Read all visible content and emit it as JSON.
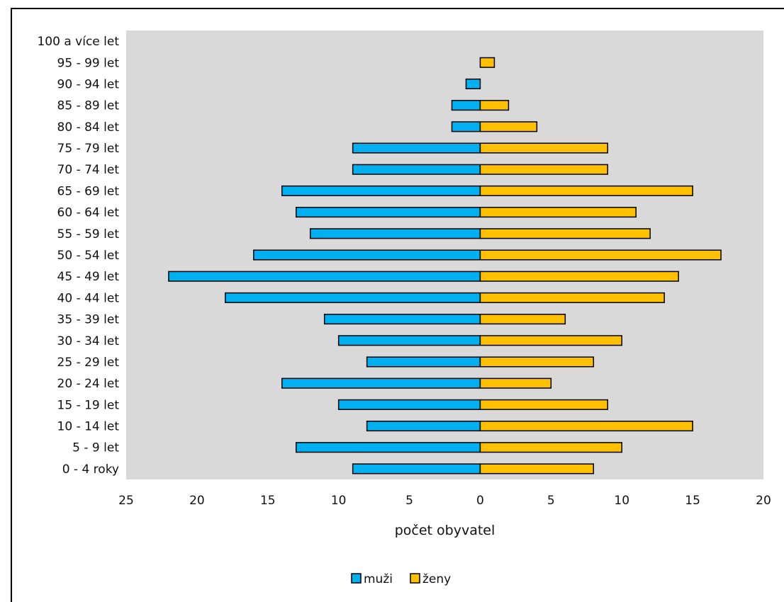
{
  "chart_data": {
    "type": "bar",
    "orientation": "horizontal",
    "subtype": "population-pyramid",
    "categories": [
      "0 - 4 roky",
      "5 - 9 let",
      "10 - 14 let",
      "15 - 19 let",
      "20 - 24 let",
      "25 - 29 let",
      "30 - 34 let",
      "35 - 39 let",
      "40 - 44 let",
      "45 - 49 let",
      "50 - 54 let",
      "55 - 59 let",
      "60 - 64 let",
      "65 - 69 let",
      "70 - 74 let",
      "75 - 79 let",
      "80 - 84 let",
      "85 - 89 let",
      "90 - 94 let",
      "95 - 99 let",
      "100 a více let"
    ],
    "series": [
      {
        "name": "muži",
        "color": "#00b0f0",
        "side": "left",
        "values": [
          9,
          13,
          8,
          10,
          14,
          8,
          10,
          11,
          18,
          22,
          16,
          12,
          13,
          14,
          9,
          9,
          2,
          2,
          1,
          0,
          0
        ]
      },
      {
        "name": "ženy",
        "color": "#ffc000",
        "side": "right",
        "values": [
          8,
          10,
          15,
          9,
          5,
          8,
          10,
          6,
          13,
          14,
          17,
          12,
          11,
          15,
          9,
          9,
          4,
          2,
          0,
          1,
          0
        ]
      }
    ],
    "xlabel": "počet obyvatel",
    "xticks": [
      "25",
      "20",
      "15",
      "10",
      "5",
      "0",
      "5",
      "10",
      "15",
      "20"
    ],
    "xlim": [
      -25,
      20
    ],
    "grid": false,
    "plot_background": "#d9d9d9",
    "legend_position": "bottom"
  }
}
